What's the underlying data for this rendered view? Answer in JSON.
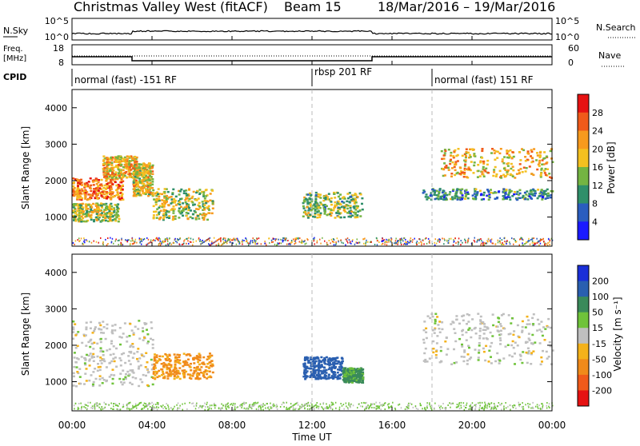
{
  "header": {
    "radar": "Christmas Valley West (fitACF)",
    "beam": "Beam 15",
    "dates": "18/Mar/2016 – 19/Mar/2016"
  },
  "nsky_panel": {
    "left_label": "N.Sky",
    "right_label": "N.Search",
    "left_ticks": [
      "10^5",
      "10^0"
    ],
    "right_ticks": [
      "10^5",
      "10^0"
    ]
  },
  "freq_panel": {
    "left_label_1": "Freq.",
    "left_label_2": "[MHz]",
    "right_label": "Nave",
    "left_ticks": [
      "18",
      "8"
    ],
    "right_ticks": [
      "60",
      "0"
    ]
  },
  "cpid": {
    "label": "CPID",
    "segments": [
      {
        "label": "normal (fast) -151 RF",
        "start_h": 0,
        "end_h": 12
      },
      {
        "label": "rbsp 201 RF",
        "start_h": 12,
        "end_h": 18
      },
      {
        "label": "normal (fast) 151 RF",
        "start_h": 18,
        "end_h": 24
      }
    ]
  },
  "x_axis": {
    "label": "Time UT",
    "ticks": [
      "00:00",
      "04:00",
      "08:00",
      "12:00",
      "16:00",
      "20:00",
      "00:00"
    ]
  },
  "power_panel": {
    "ylabel": "Slant Range [km]",
    "yticks": [
      "4000",
      "3000",
      "2000",
      "1000"
    ],
    "colorbar_label": "Power [dB]",
    "colorbar_ticks": [
      "28",
      "24",
      "20",
      "16",
      "12",
      "8",
      "4"
    ],
    "colors": [
      "#1a1aff",
      "#2a5dbf",
      "#2f8f6a",
      "#74b442",
      "#f4c020",
      "#f79a1d",
      "#f05a1a",
      "#e61212"
    ]
  },
  "velocity_panel": {
    "ylabel": "Slant Range [km]",
    "yticks": [
      "4000",
      "3000",
      "2000",
      "1000"
    ],
    "colorbar_label": "Velocity [m s⁻¹]",
    "colorbar_ticks": [
      "200",
      "100",
      "50",
      "15",
      "-15",
      "-50",
      "-100",
      "-200"
    ],
    "colors": [
      "#1a2fd8",
      "#2a5fb0",
      "#3a8a5a",
      "#6fc33a",
      "#bfbfbf",
      "#f4b21a",
      "#f08a1a",
      "#f05a1a",
      "#e61212"
    ]
  },
  "chart_data": {
    "type": "heatmap",
    "x_range_hours": [
      0,
      24
    ],
    "y_range_km": [
      200,
      4500
    ],
    "power_regions": [
      {
        "t0": 0,
        "t1": 2.5,
        "r0": 1500,
        "r1": 2100,
        "power_db": 24
      },
      {
        "t0": 1.5,
        "t1": 3.2,
        "r0": 2100,
        "r1": 2700,
        "power_db": 20
      },
      {
        "t0": 0,
        "t1": 2.3,
        "r0": 900,
        "r1": 1400,
        "power_db": 16
      },
      {
        "t0": 3.0,
        "t1": 4.0,
        "r0": 1600,
        "r1": 2500,
        "power_db": 18
      },
      {
        "t0": 4.0,
        "t1": 7.0,
        "r0": 950,
        "r1": 1800,
        "power_db": 16
      },
      {
        "t0": 11.5,
        "t1": 14.5,
        "r0": 1000,
        "r1": 1700,
        "power_db": 14
      },
      {
        "t0": 18.3,
        "t1": 24.0,
        "r0": 2100,
        "r1": 2900,
        "power_db": 20
      },
      {
        "t0": 17.5,
        "t1": 24.0,
        "r0": 1500,
        "r1": 1800,
        "power_db": 10
      }
    ],
    "velocity_regions": [
      {
        "t0": 0,
        "t1": 4.0,
        "r0": 900,
        "r1": 2700,
        "velocity": 0
      },
      {
        "t0": 4.0,
        "t1": 7.0,
        "r0": 1100,
        "r1": 1800,
        "velocity": -60
      },
      {
        "t0": 11.5,
        "t1": 13.5,
        "r0": 1100,
        "r1": 1700,
        "velocity": 120
      },
      {
        "t0": 13.5,
        "t1": 14.5,
        "r0": 1000,
        "r1": 1400,
        "velocity": 40
      },
      {
        "t0": 17.5,
        "t1": 24.0,
        "r0": 1500,
        "r1": 2900,
        "velocity": 0
      }
    ],
    "frequency_mhz": [
      {
        "t0": 0,
        "t1": 3.0,
        "value": 12
      },
      {
        "t0": 3.0,
        "t1": 15.0,
        "value": 10
      },
      {
        "t0": 15.0,
        "t1": 24.0,
        "value": 12
      }
    ]
  }
}
